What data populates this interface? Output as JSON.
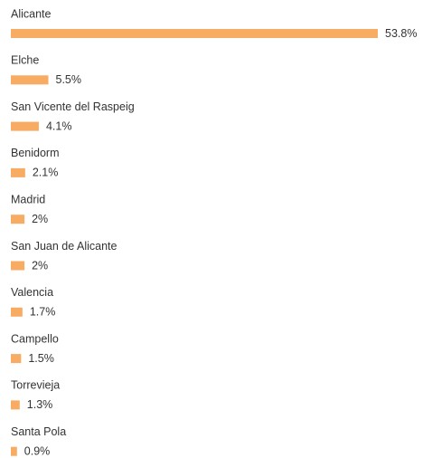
{
  "chart_data": {
    "type": "bar",
    "categories": [
      "Alicante",
      "Elche",
      "San Vicente del Raspeig",
      "Benidorm",
      "Madrid",
      "San Juan de Alicante",
      "Valencia",
      "Campello",
      "Torrevieja",
      "Santa Pola"
    ],
    "values": [
      53.8,
      5.5,
      4.1,
      2.1,
      2,
      2,
      1.7,
      1.5,
      1.3,
      0.9
    ],
    "value_labels": [
      "53.8%",
      "5.5%",
      "4.1%",
      "2.1%",
      "2%",
      "2%",
      "1.7%",
      "1.5%",
      "1.3%",
      "0.9%"
    ],
    "color": "#f8ab63"
  }
}
